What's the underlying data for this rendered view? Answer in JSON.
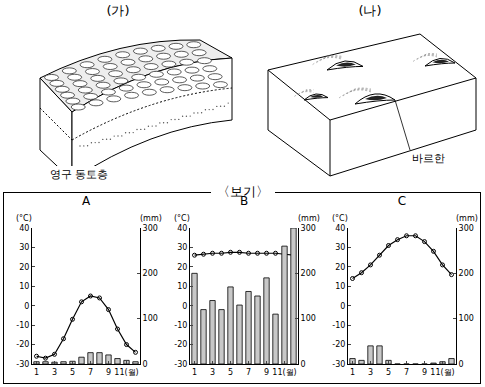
{
  "diagrams": {
    "ga": {
      "label": "(가)",
      "caption": "영구 동토층"
    },
    "na": {
      "label": "(나)",
      "caption": "바르한"
    }
  },
  "box_title": "〈보기〉",
  "chart_data": [
    {
      "type": "combo",
      "title": "A",
      "x": [
        1,
        2,
        3,
        4,
        5,
        6,
        7,
        8,
        9,
        10,
        11,
        12
      ],
      "xlim": [
        0.5,
        12.5
      ],
      "xticks": [
        1,
        3,
        5,
        7,
        9,
        {
          "value": 11,
          "label": "11(월)"
        }
      ],
      "y_label": "(°C)",
      "y2_label": "(mm)",
      "ylim": [
        -30,
        40
      ],
      "yticks": [
        -30,
        -20,
        -10,
        0,
        10,
        20,
        30,
        40
      ],
      "y2lim": [
        0,
        300
      ],
      "y2ticks": [
        0,
        100,
        200,
        300
      ],
      "series": [
        {
          "type": "bar",
          "axis": "y2",
          "color": "#c8c8c8",
          "values": [
            5,
            5,
            4,
            5,
            6,
            15,
            25,
            25,
            20,
            12,
            8,
            5
          ]
        },
        {
          "type": "line",
          "marker": "open_circle",
          "color": "#000000",
          "values": [
            -26,
            -27,
            -25,
            -17,
            -7,
            2,
            5,
            4,
            -2,
            -12,
            -20,
            -24
          ]
        }
      ]
    },
    {
      "type": "combo",
      "title": "B",
      "x": [
        1,
        2,
        3,
        4,
        5,
        6,
        7,
        8,
        9,
        10,
        11,
        12
      ],
      "xlim": [
        0.5,
        12.5
      ],
      "xticks": [
        1,
        3,
        5,
        7,
        9,
        {
          "value": 11,
          "label": "11(월)"
        }
      ],
      "y_label": "(°C)",
      "y2_label": "(mm)",
      "ylim": [
        -30,
        40
      ],
      "yticks": [
        -30,
        -20,
        -10,
        0,
        10,
        20,
        30,
        40
      ],
      "y2lim": [
        0,
        300
      ],
      "y2ticks": [
        0,
        100,
        200,
        300
      ],
      "series": [
        {
          "type": "bar",
          "axis": "y2",
          "color": "#c8c8c8",
          "values": [
            200,
            120,
            140,
            120,
            170,
            130,
            160,
            150,
            190,
            110,
            260,
            300
          ]
        },
        {
          "type": "line",
          "marker": "open_circle",
          "color": "#000000",
          "values": [
            26,
            26.5,
            27,
            27,
            27.5,
            27.5,
            27,
            27,
            27,
            27,
            26.5,
            26
          ]
        }
      ]
    },
    {
      "type": "combo",
      "title": "C",
      "x": [
        1,
        2,
        3,
        4,
        5,
        6,
        7,
        8,
        9,
        10,
        11,
        12
      ],
      "xlim": [
        0.5,
        12.5
      ],
      "xticks": [
        1,
        3,
        5,
        7,
        9,
        {
          "value": 11,
          "label": "11(월)"
        }
      ],
      "y_label": "(°C)",
      "y2_label": "(mm)",
      "ylim": [
        -30,
        40
      ],
      "yticks": [
        -30,
        -20,
        -10,
        0,
        10,
        20,
        30,
        40
      ],
      "y2lim": [
        0,
        300
      ],
      "y2ticks": [
        0,
        100,
        200,
        300
      ],
      "series": [
        {
          "type": "bar",
          "axis": "y2",
          "color": "#c8c8c8",
          "values": [
            12,
            8,
            40,
            40,
            8,
            0,
            0,
            0,
            0,
            2,
            5,
            12
          ]
        },
        {
          "type": "line",
          "marker": "open_circle",
          "color": "#000000",
          "values": [
            14,
            17,
            21,
            26,
            31,
            34,
            36,
            36,
            33,
            28,
            21,
            16
          ]
        }
      ]
    }
  ]
}
